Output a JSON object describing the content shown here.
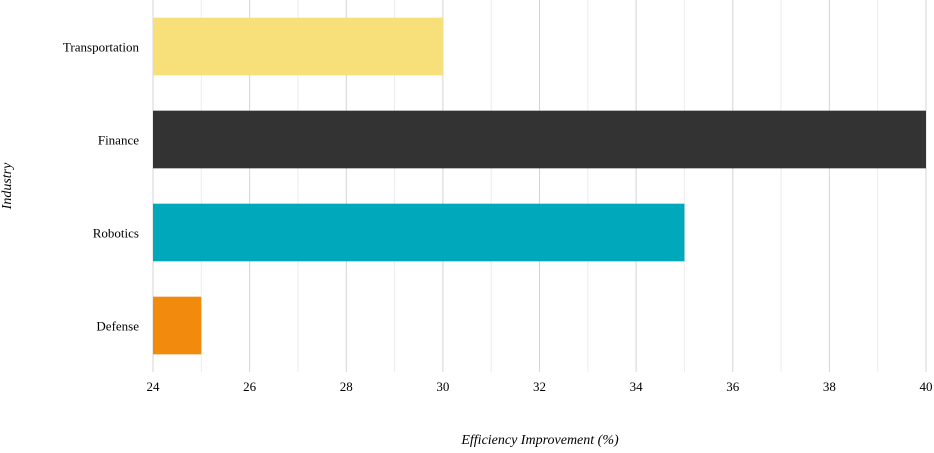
{
  "chart_data": {
    "type": "bar",
    "orientation": "horizontal",
    "categories": [
      "Transportation",
      "Finance",
      "Robotics",
      "Defense"
    ],
    "values": [
      30,
      40,
      35,
      25
    ],
    "colors": [
      "#f7e07a",
      "#333333",
      "#00a8bb",
      "#f28a0e"
    ],
    "title": "",
    "xlabel": "Efficiency Improvement (%)",
    "ylabel": "Industry",
    "xlim": [
      24,
      40
    ],
    "xticks": [
      24,
      26,
      28,
      30,
      32,
      34,
      36,
      38,
      40
    ],
    "x_minor_gridlines": true,
    "grid": true,
    "legend": "none"
  }
}
